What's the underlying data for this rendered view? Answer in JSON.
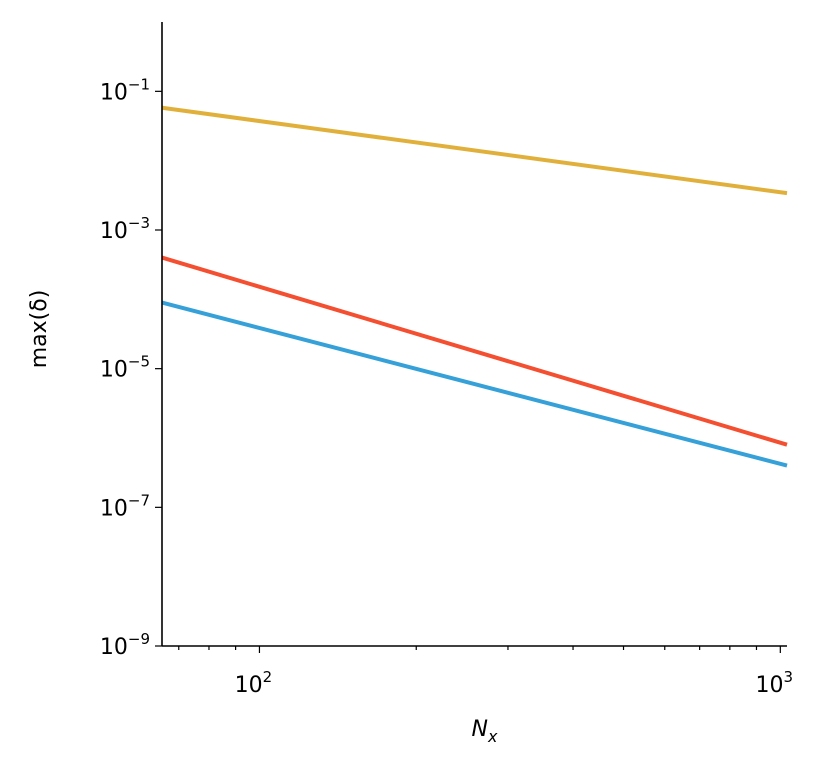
{
  "chart_data": {
    "type": "line",
    "xscale": "log",
    "yscale": "log",
    "xlabel": "N",
    "xlabel_sub": "x",
    "ylabel": "max(δ)",
    "xlim": [
      65,
      1030
    ],
    "ylim": [
      1e-09,
      1
    ],
    "grid": false,
    "x_ticks": [
      {
        "base": "10",
        "exp": "2",
        "value": 100
      },
      {
        "base": "10",
        "exp": "3",
        "value": 1000
      }
    ],
    "y_ticks": [
      {
        "base": "10",
        "exp": "−1",
        "value": 0.1
      },
      {
        "base": "10",
        "exp": "−3",
        "value": 0.001
      },
      {
        "base": "10",
        "exp": "−5",
        "value": 1e-05
      },
      {
        "base": "10",
        "exp": "−7",
        "value": 1e-07
      },
      {
        "base": "10",
        "exp": "−9",
        "value": 1e-09
      }
    ],
    "series": [
      {
        "color": "#e0b03a",
        "x": [
          65,
          1030
        ],
        "y": [
          0.058,
          0.0034
        ]
      },
      {
        "color": "#f44f30",
        "x": [
          65,
          1030
        ],
        "y": [
          0.0004,
          8e-07
        ]
      },
      {
        "color": "#35a1d8",
        "x": [
          65,
          1030
        ],
        "y": [
          9e-05,
          4e-07
        ]
      }
    ]
  }
}
